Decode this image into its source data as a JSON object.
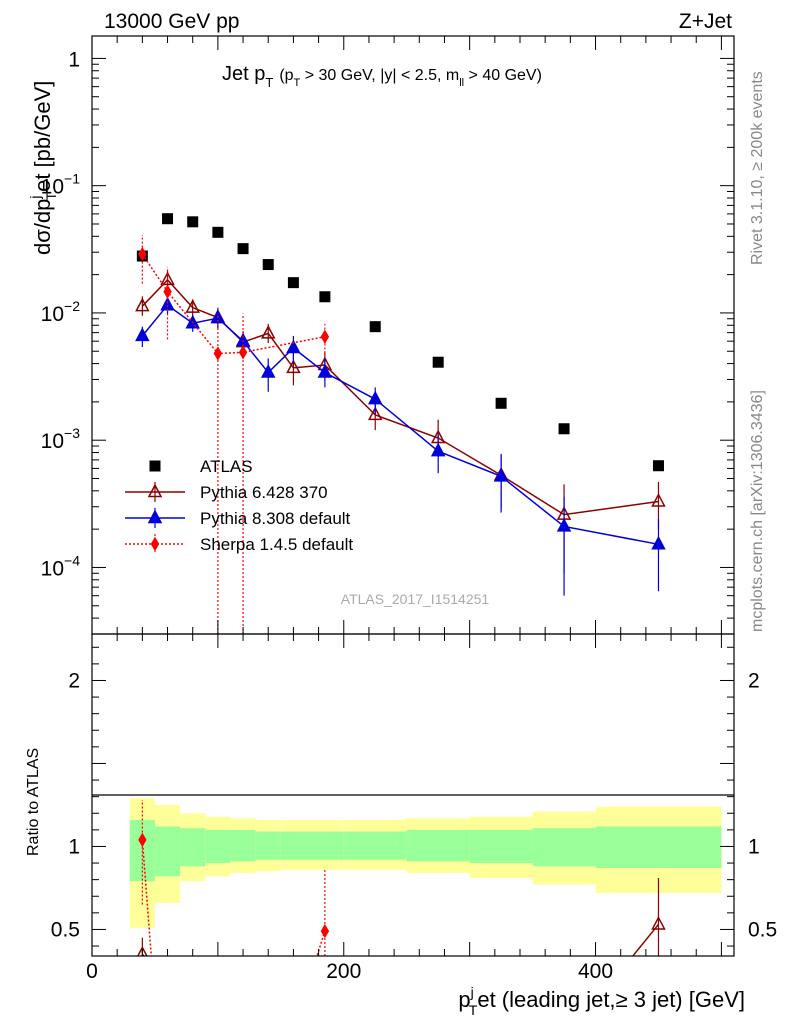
{
  "header": {
    "energy": "13000 GeV pp",
    "process": "Z+Jet"
  },
  "side": {
    "rivet": "Rivet 3.1.10, ≥ 200k events",
    "mcplots": "mcplots.cern.ch [arXiv:1306.3436]"
  },
  "watermark": "ATLAS_2017_I1514251",
  "colors": {
    "atlas": "#000000",
    "pythia6": "#8b0000",
    "pythia8": "#0000dd",
    "sherpa": "#ff0000",
    "band_inner": "#99ff99",
    "band_outer": "#ffff99"
  },
  "chart_data": [
    {
      "type": "scatter",
      "title_main": "Jet p",
      "title_main_sub": "T",
      "title_cuts": "(p",
      "title_cuts_sub": "T",
      "title_cuts_rest": " > 30 GeV, |y| < 2.5, m",
      "title_cuts_sub2": "ll",
      "title_cuts_end": " > 40 GeV)",
      "ylabel": "dσ/dp",
      "ylabel_sup": "j",
      "ylabel_sub": "T",
      "ylabel_rest": "et [pb/GeV]",
      "yscale": "log",
      "xlim": [
        0,
        510
      ],
      "ylim": [
        3e-05,
        1.5
      ],
      "yticks": [
        {
          "value": 1,
          "label": "1"
        },
        {
          "value": 0.1,
          "label": "10",
          "exp": "−1"
        },
        {
          "value": 0.01,
          "label": "10",
          "exp": "−2"
        },
        {
          "value": 0.001,
          "label": "10",
          "exp": "−3"
        },
        {
          "value": 0.0001,
          "label": "10",
          "exp": "−4"
        }
      ],
      "legend_position": "bottom-left",
      "series": [
        {
          "name": "ATLAS",
          "marker": "square",
          "x": [
            40,
            60,
            80,
            100,
            120,
            140,
            160,
            185,
            225,
            275,
            325,
            375,
            450
          ],
          "y": [
            0.028,
            0.055,
            0.052,
            0.043,
            0.032,
            0.024,
            0.0173,
            0.0134,
            0.0078,
            0.0041,
            0.00195,
            0.00123,
            0.00063
          ]
        },
        {
          "name": "Pythia 6.428 370",
          "marker": "open-triangle",
          "x": [
            40,
            60,
            80,
            100,
            120,
            140,
            160,
            185,
            225,
            275,
            325,
            375,
            450
          ],
          "y": [
            0.0113,
            0.0182,
            0.011,
            0.0092,
            0.0059,
            0.0069,
            0.0037,
            0.0039,
            0.00158,
            0.00104,
            0.00053,
            0.00026,
            0.00033
          ],
          "err_lo": [
            0.0095,
            0.0155,
            0.0095,
            0.0077,
            0.0049,
            0.0058,
            0.0027,
            0.003,
            0.0012,
            0.00074,
            0.00029,
            9e-05,
            0.0002
          ],
          "err_hi": [
            0.0135,
            0.0214,
            0.0128,
            0.011,
            0.0071,
            0.0082,
            0.005,
            0.005,
            0.00205,
            0.00145,
            0.00078,
            0.00045,
            0.00047
          ]
        },
        {
          "name": "Pythia 8.308 default",
          "marker": "filled-triangle",
          "x": [
            40,
            60,
            80,
            100,
            120,
            140,
            160,
            185,
            225,
            275,
            325,
            375,
            450
          ],
          "y": [
            0.0066,
            0.0115,
            0.0083,
            0.0091,
            0.006,
            0.0034,
            0.0053,
            0.0034,
            0.0021,
            0.00082,
            0.00052,
            0.00021,
            0.000152
          ],
          "err_lo": [
            0.0054,
            0.0098,
            0.0071,
            0.0076,
            0.0048,
            0.0024,
            0.004,
            0.0026,
            0.0016,
            0.00055,
            0.00027,
            6e-05,
            6.5e-05
          ],
          "err_hi": [
            0.0078,
            0.0133,
            0.0096,
            0.0106,
            0.0072,
            0.0044,
            0.0066,
            0.0044,
            0.0026,
            0.0011,
            0.00077,
            0.00036,
            0.00024
          ]
        },
        {
          "name": "Sherpa 1.4.5 default",
          "marker": "diamond",
          "x": [
            40,
            60,
            100,
            120,
            185
          ],
          "y": [
            0.029,
            0.0147,
            0.0048,
            0.0049,
            0.0065
          ],
          "err_lo": [
            0.017,
            0.0062,
            3e-05,
            3e-05,
            0.0048
          ],
          "err_hi": [
            0.041,
            0.023,
            0.0098,
            0.0099,
            0.0082
          ]
        }
      ]
    },
    {
      "type": "scatter",
      "ylabel": "Ratio to ATLAS",
      "xlabel": "p",
      "xlabel_sub": "T",
      "xlabel_sup": "j",
      "xlabel_rest": "et (leading jet,≥ 3 jet) [GeV]",
      "xlim": [
        0,
        510
      ],
      "ylim": [
        0.34,
        2.28
      ],
      "xticks": [
        0,
        200,
        400
      ],
      "yticks": [
        0.5,
        1,
        2
      ],
      "reference_line": 1,
      "bands": {
        "edges": [
          30,
          50,
          70,
          90,
          110,
          130,
          150,
          170,
          200,
          250,
          300,
          350,
          400,
          500
        ],
        "inner_lo": [
          0.79,
          0.82,
          0.88,
          0.9,
          0.91,
          0.92,
          0.92,
          0.92,
          0.92,
          0.91,
          0.9,
          0.88,
          0.87
        ],
        "inner_hi": [
          1.16,
          1.12,
          1.11,
          1.1,
          1.1,
          1.09,
          1.09,
          1.09,
          1.09,
          1.1,
          1.1,
          1.11,
          1.12
        ],
        "outer_lo": [
          0.51,
          0.66,
          0.79,
          0.82,
          0.84,
          0.85,
          0.86,
          0.86,
          0.86,
          0.84,
          0.81,
          0.77,
          0.72
        ],
        "outer_hi": [
          1.29,
          1.25,
          1.2,
          1.18,
          1.17,
          1.16,
          1.16,
          1.16,
          1.16,
          1.17,
          1.18,
          1.21,
          1.24
        ]
      },
      "series": [
        {
          "name": "Pythia 6.428 370",
          "x": [
            40,
            52,
            420,
            450
          ],
          "y": [
            0.35,
            0.25,
            0.25,
            0.53
          ],
          "marker_points": [
            {
              "x": 40,
              "y": 0.35,
              "err_lo": 0.25,
              "err_hi": 0.45
            },
            {
              "x": 450,
              "y": 0.53,
              "err_lo": 0.34,
              "err_hi": 0.81
            }
          ]
        },
        {
          "name": "Sherpa 1.4.5 default",
          "x": [
            40,
            48,
            175,
            185
          ],
          "y": [
            1.04,
            0.25,
            0.25,
            0.49
          ],
          "marker_points": [
            {
              "x": 40,
              "y": 1.04,
              "err_lo": 0.65,
              "err_hi": 1.28
            },
            {
              "x": 185,
              "y": 0.49,
              "err_lo": 0.34,
              "err_hi": 0.87
            }
          ]
        }
      ]
    }
  ]
}
